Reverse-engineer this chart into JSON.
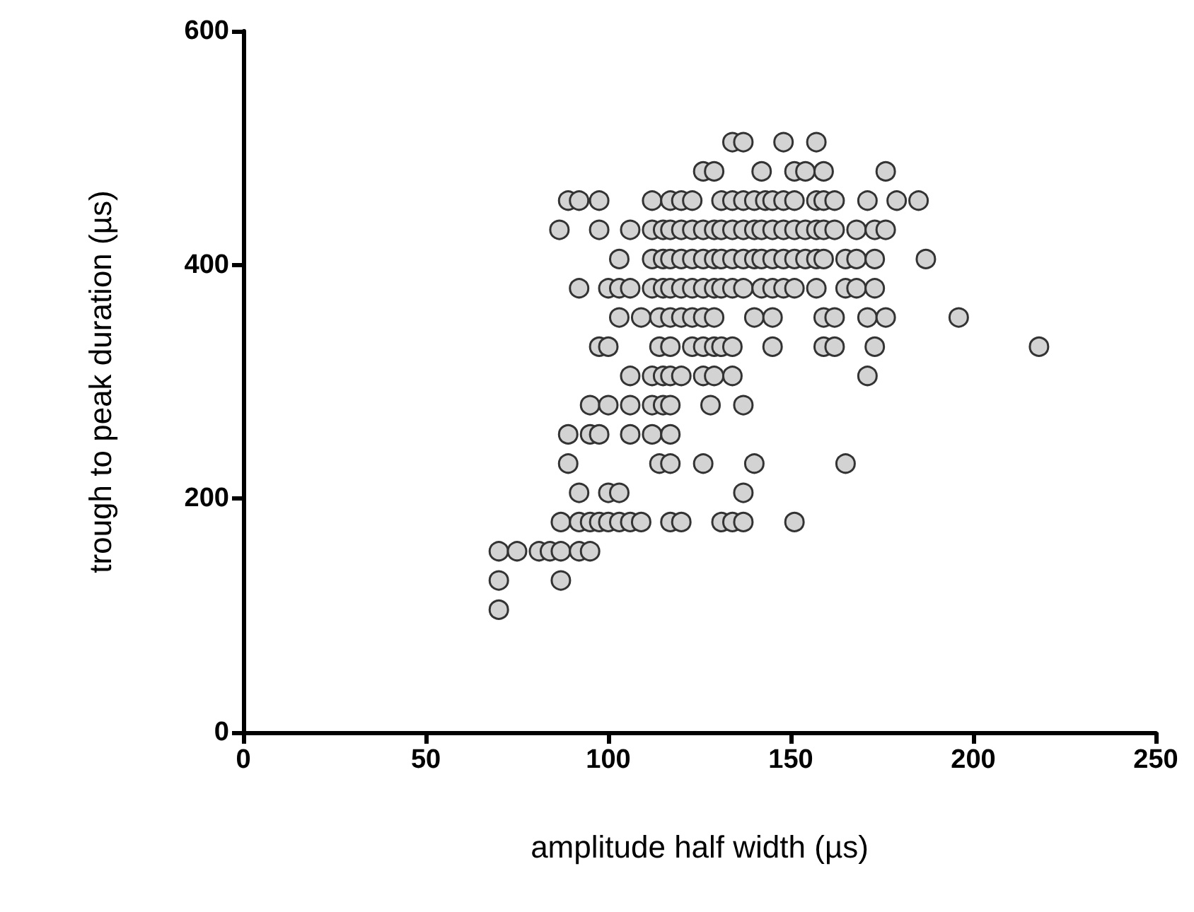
{
  "chart_data": {
    "type": "scatter",
    "xlabel": "amplitude half width (µs)",
    "ylabel": "trough to peak duration (µs)",
    "xlim": [
      0,
      250
    ],
    "xticks": [
      0,
      50,
      100,
      150,
      200,
      250
    ],
    "ylim": [
      0,
      600
    ],
    "yticks": [
      0,
      200,
      400,
      600
    ],
    "grid": false,
    "marker": "circle",
    "series": [
      {
        "color": "#d3d3d3",
        "x": [
          134,
          137,
          148,
          157,
          126,
          129,
          142,
          151,
          154,
          159,
          176,
          89,
          92,
          97.5,
          112,
          117,
          120,
          123,
          131,
          134,
          137,
          140,
          143,
          145,
          148,
          151,
          157,
          159,
          162,
          171,
          179,
          185,
          86.6,
          97.5,
          106,
          112,
          115,
          117,
          120,
          123,
          126,
          129,
          131,
          134,
          137,
          140,
          142,
          145,
          148,
          151,
          154,
          157,
          159,
          162,
          168,
          173,
          176,
          103,
          112,
          115,
          117,
          120,
          123,
          126,
          129,
          131,
          134,
          137,
          140,
          142,
          145,
          148,
          151,
          154,
          157,
          159,
          165,
          168,
          173,
          187,
          92,
          100,
          103,
          106,
          112,
          115,
          117,
          120,
          123,
          126,
          129,
          131,
          134,
          137,
          142,
          145,
          148,
          151,
          157,
          165,
          168,
          173,
          103,
          109,
          114,
          117,
          120,
          123,
          126,
          129,
          140,
          145,
          159,
          162,
          171,
          176,
          196,
          97.5,
          100,
          114,
          117,
          123,
          126,
          129,
          131,
          134,
          145,
          159,
          162,
          173,
          218,
          106,
          112,
          115,
          117,
          120,
          126,
          129,
          134,
          171,
          95,
          100,
          106,
          112,
          115,
          117,
          128,
          137,
          89,
          95,
          97.5,
          106,
          112,
          117,
          89,
          114,
          117,
          126,
          140,
          165,
          92,
          100,
          103,
          137,
          87,
          92,
          95,
          97.5,
          100,
          103,
          106,
          109,
          117,
          120,
          131,
          134,
          137,
          151,
          70,
          75,
          81,
          84,
          87,
          92,
          95,
          70,
          87,
          70
        ],
        "values": [
          505,
          505,
          505,
          505,
          480,
          480,
          480,
          480,
          480,
          480,
          480,
          455,
          455,
          455,
          455,
          455,
          455,
          455,
          455,
          455,
          455,
          455,
          455,
          455,
          455,
          455,
          455,
          455,
          455,
          455,
          455,
          455,
          430,
          430,
          430,
          430,
          430,
          430,
          430,
          430,
          430,
          430,
          430,
          430,
          430,
          430,
          430,
          430,
          430,
          430,
          430,
          430,
          430,
          430,
          430,
          430,
          430,
          405,
          405,
          405,
          405,
          405,
          405,
          405,
          405,
          405,
          405,
          405,
          405,
          405,
          405,
          405,
          405,
          405,
          405,
          405,
          405,
          405,
          405,
          405,
          380,
          380,
          380,
          380,
          380,
          380,
          380,
          380,
          380,
          380,
          380,
          380,
          380,
          380,
          380,
          380,
          380,
          380,
          380,
          380,
          380,
          380,
          355,
          355,
          355,
          355,
          355,
          355,
          355,
          355,
          355,
          355,
          355,
          355,
          355,
          355,
          355,
          330,
          330,
          330,
          330,
          330,
          330,
          330,
          330,
          330,
          330,
          330,
          330,
          330,
          330,
          305,
          305,
          305,
          305,
          305,
          305,
          305,
          305,
          305,
          280,
          280,
          280,
          280,
          280,
          280,
          280,
          280,
          255,
          255,
          255,
          255,
          255,
          255,
          230,
          230,
          230,
          230,
          230,
          230,
          205,
          205,
          205,
          205,
          180,
          180,
          180,
          180,
          180,
          180,
          180,
          180,
          180,
          180,
          180,
          180,
          180,
          180,
          155,
          155,
          155,
          155,
          155,
          155,
          155,
          130,
          130,
          105
        ]
      }
    ]
  }
}
